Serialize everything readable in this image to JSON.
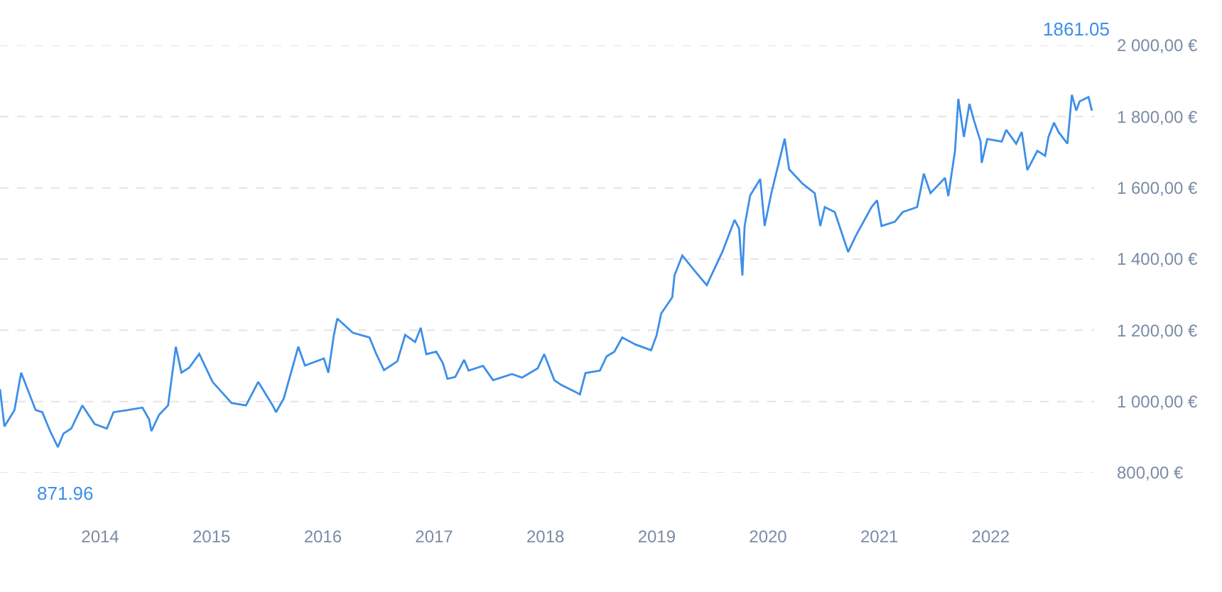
{
  "chart_data": {
    "type": "line",
    "x": [
      2013.1,
      2013.14,
      2013.23,
      2013.29,
      2013.42,
      2013.48,
      2013.55,
      2013.62,
      2013.67,
      2013.74,
      2013.84,
      2013.95,
      2014.06,
      2014.12,
      2014.25,
      2014.38,
      2014.44,
      2014.46,
      2014.53,
      2014.61,
      2014.68,
      2014.73,
      2014.8,
      2014.89,
      2015.01,
      2015.18,
      2015.31,
      2015.42,
      2015.55,
      2015.58,
      2015.65,
      2015.78,
      2015.84,
      2016.01,
      2016.05,
      2016.1,
      2016.13,
      2016.27,
      2016.42,
      2016.48,
      2016.55,
      2016.67,
      2016.74,
      2016.83,
      2016.88,
      2016.93,
      2017.02,
      2017.08,
      2017.12,
      2017.19,
      2017.27,
      2017.31,
      2017.44,
      2017.53,
      2017.7,
      2017.79,
      2017.93,
      2017.99,
      2018.08,
      2018.14,
      2018.27,
      2018.31,
      2018.36,
      2018.49,
      2018.55,
      2018.62,
      2018.69,
      2018.81,
      2018.95,
      2019.0,
      2019.04,
      2019.14,
      2019.16,
      2019.23,
      2019.36,
      2019.45,
      2019.59,
      2019.7,
      2019.74,
      2019.77,
      2019.79,
      2019.84,
      2019.93,
      2019.97,
      2020.03,
      2020.15,
      2020.19,
      2020.31,
      2020.42,
      2020.47,
      2020.51,
      2020.6,
      2020.72,
      2020.79,
      2020.93,
      2020.98,
      2021.02,
      2021.14,
      2021.21,
      2021.34,
      2021.4,
      2021.46,
      2021.59,
      2021.62,
      2021.68,
      2021.71,
      2021.76,
      2021.81,
      2021.85,
      2021.91,
      2021.92,
      2021.97,
      2022.1,
      2022.14,
      2022.23,
      2022.28,
      2022.33,
      2022.42,
      2022.49,
      2022.52,
      2022.57,
      2022.61,
      2022.69,
      2022.73,
      2022.77,
      2022.8,
      2022.88,
      2022.91
    ],
    "series": [
      {
        "color": "#3d8fe8",
        "values": [
          1035,
          930,
          976,
          1081,
          976,
          970,
          917,
          871.96,
          910,
          924,
          989,
          937,
          924,
          970,
          976,
          983,
          950,
          917,
          963,
          989,
          1154,
          1081,
          1095,
          1134,
          1055,
          996,
          989,
          1055,
          989,
          970,
          1009,
          1154,
          1101,
          1121,
          1081,
          1187,
          1233,
          1193,
          1180,
          1134,
          1088,
          1113,
          1187,
          1167,
          1207,
          1133,
          1140,
          1107,
          1064,
          1069,
          1117,
          1087,
          1100,
          1060,
          1077,
          1067,
          1093,
          1133,
          1060,
          1047,
          1027,
          1020,
          1080,
          1087,
          1127,
          1140,
          1180,
          1160,
          1144,
          1187,
          1247,
          1293,
          1354,
          1410,
          1360,
          1327,
          1420,
          1510,
          1486,
          1354,
          1493,
          1579,
          1625,
          1493,
          1585,
          1738,
          1652,
          1612,
          1585,
          1493,
          1546,
          1532,
          1420,
          1466,
          1546,
          1565,
          1493,
          1505,
          1532,
          1546,
          1640,
          1585,
          1628,
          1577,
          1704,
          1850,
          1743,
          1836,
          1790,
          1730,
          1670,
          1737,
          1730,
          1763,
          1724,
          1757,
          1650,
          1704,
          1690,
          1743,
          1783,
          1757,
          1724,
          1861.05,
          1817,
          1843,
          1855,
          1817
        ]
      }
    ],
    "xlim": [
      2013.1,
      2022.93
    ],
    "xticks": [
      2014,
      2015,
      2016,
      2017,
      2018,
      2019,
      2020,
      2021,
      2022
    ],
    "ylim": [
      800,
      2000
    ],
    "yticks": [
      {
        "value": 800,
        "label": "800,00 €"
      },
      {
        "value": 1000,
        "label": "1 000,00 €"
      },
      {
        "value": 1200,
        "label": "1 200,00 €"
      },
      {
        "value": 1400,
        "label": "1 400,00 €"
      },
      {
        "value": 1600,
        "label": "1 600,00 €"
      },
      {
        "value": 1800,
        "label": "1 800,00 €"
      },
      {
        "value": 2000,
        "label": "2 000,00 €"
      }
    ],
    "grid": "y",
    "line_style": "solid",
    "annotations": [
      {
        "text": "871.96",
        "x": 2013.62,
        "y": 871.96
      },
      {
        "text": "1861.05",
        "x": 2022.73,
        "y": 1861.05
      }
    ]
  }
}
